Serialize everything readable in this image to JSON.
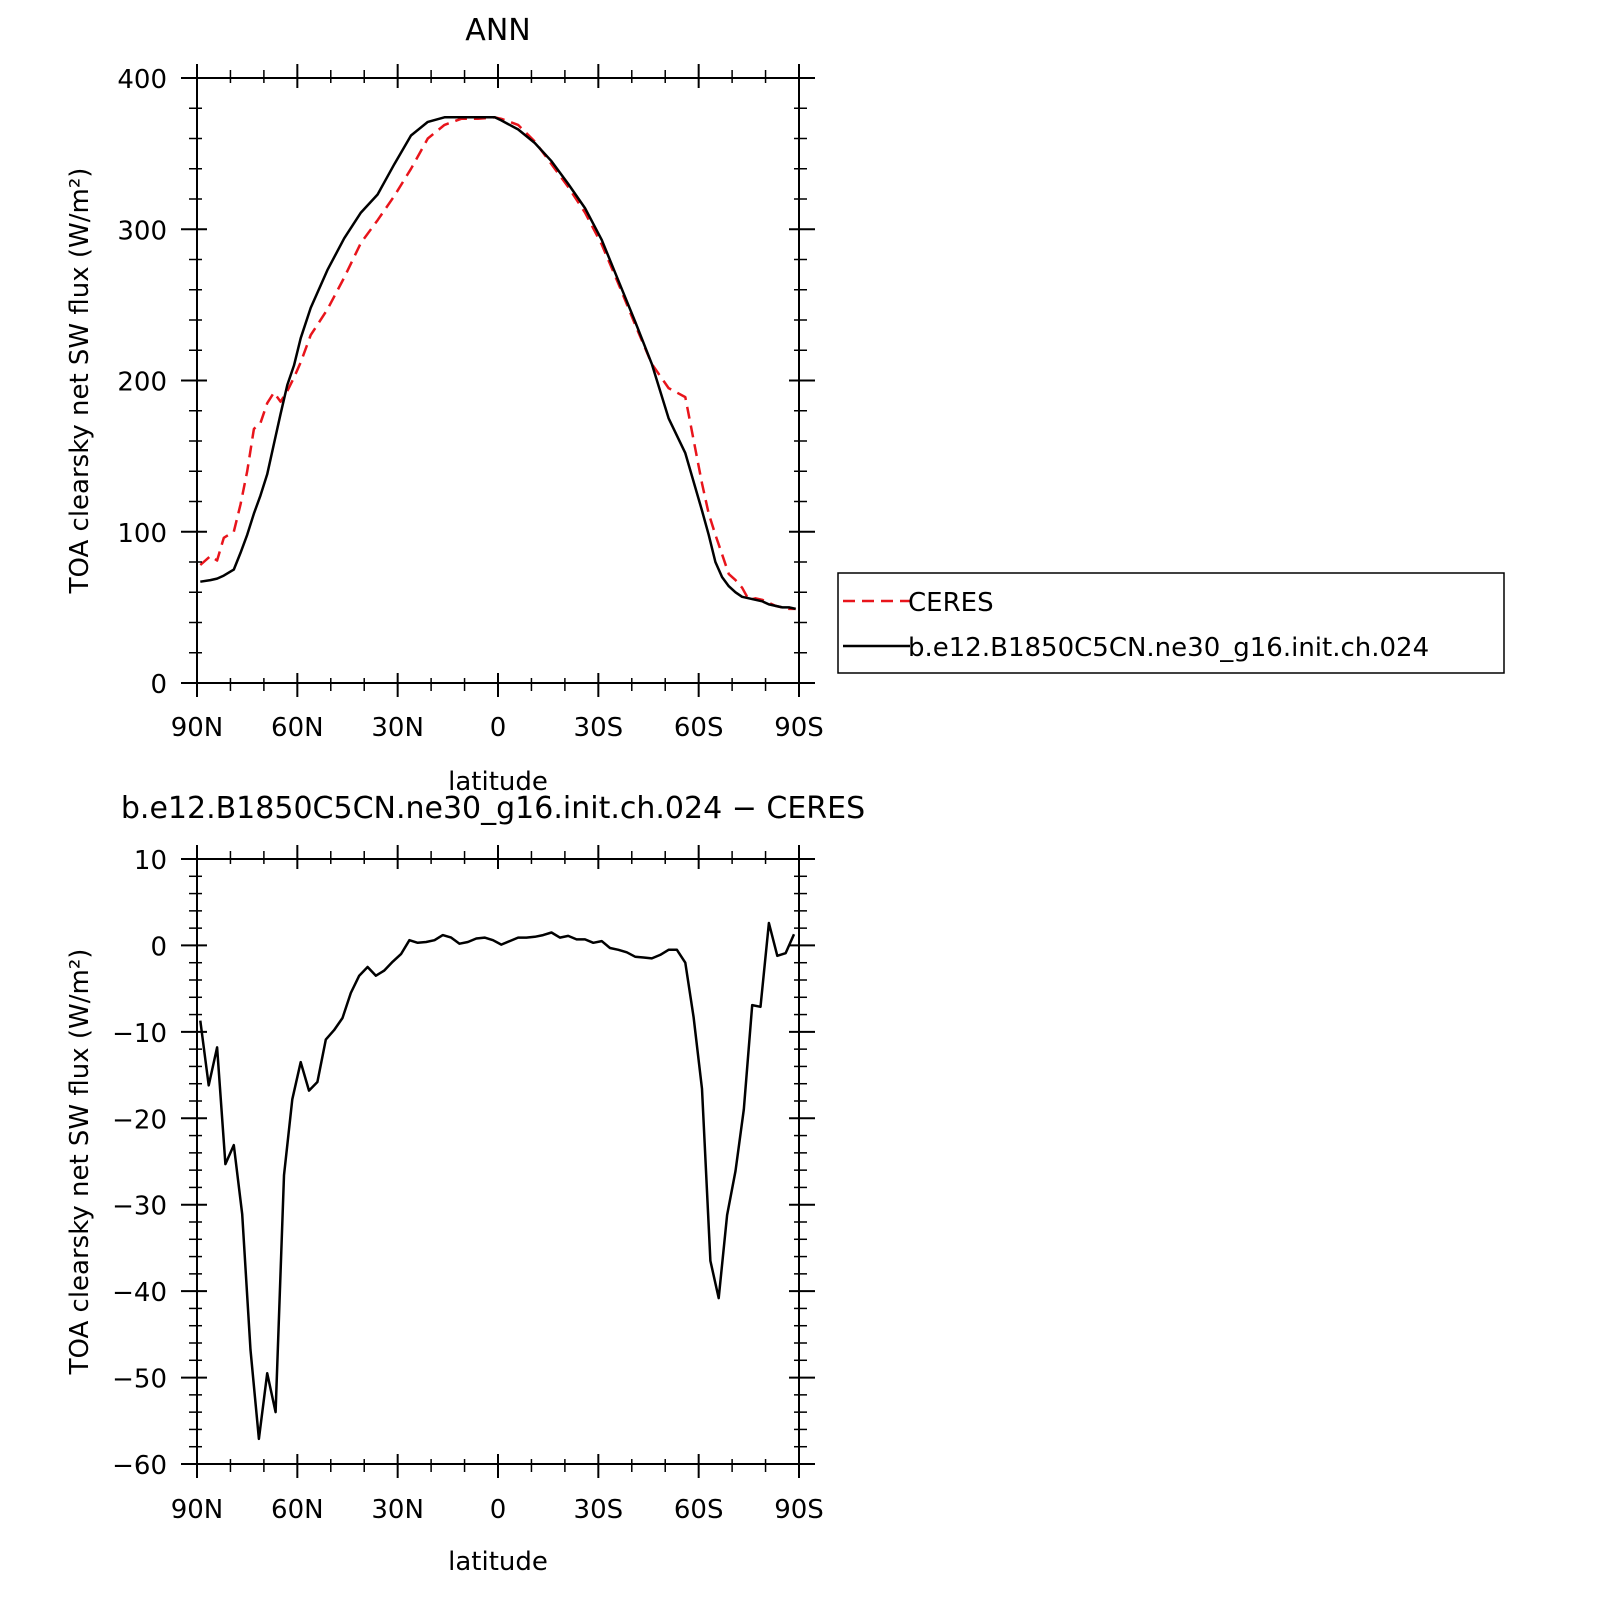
{
  "chart_data": [
    {
      "type": "line",
      "title": "ANN",
      "xlabel": "latitude",
      "ylabel": "TOA clearsky net SW flux (W/m²)",
      "xlim": [
        90,
        -90
      ],
      "ylim": [
        0,
        400
      ],
      "xticks": [
        {
          "value": 90,
          "label": "90N"
        },
        {
          "value": 60,
          "label": "60N"
        },
        {
          "value": 30,
          "label": "30N"
        },
        {
          "value": 0,
          "label": "0"
        },
        {
          "value": -30,
          "label": "30S"
        },
        {
          "value": -60,
          "label": "60S"
        },
        {
          "value": -90,
          "label": "90S"
        }
      ],
      "yticks": [
        0,
        100,
        200,
        300,
        400
      ],
      "grid": false,
      "legend": "right",
      "x": [
        89,
        86,
        84,
        82,
        79,
        77,
        75,
        73,
        71,
        69,
        67,
        65,
        63,
        61,
        59,
        56,
        51,
        46,
        41,
        36,
        31,
        26,
        21,
        16,
        11,
        6,
        1,
        -1,
        -6,
        -11,
        -16,
        -21,
        -26,
        -31,
        -36,
        -41,
        -46,
        -51,
        -56,
        -61,
        -63,
        -65,
        -67,
        -69,
        -71,
        -73,
        -75,
        -77,
        -79,
        -81,
        -83,
        -85,
        -87,
        -89
      ],
      "series": [
        {
          "name": "CERES",
          "color": "#e8141b",
          "dash": "dashed",
          "values": [
            78,
            84,
            81,
            96,
            100,
            118,
            140,
            168,
            172,
            185,
            192,
            186,
            193,
            202,
            212,
            230,
            247,
            268,
            291,
            306,
            322,
            340,
            360,
            369,
            373,
            373,
            374,
            373,
            369,
            358,
            343,
            328,
            311,
            290,
            264,
            237,
            211,
            195,
            189,
            132,
            112,
            98,
            85,
            72,
            68,
            63,
            55,
            56,
            55,
            53,
            51,
            50,
            49,
            49
          ]
        },
        {
          "name": "b.e12.B1850C5CN.ne30_g16.init.ch.024",
          "color": "#000000",
          "dash": "solid",
          "values": [
            67,
            68,
            69,
            71,
            75,
            86,
            98,
            112,
            124,
            138,
            158,
            178,
            197,
            210,
            228,
            248,
            273,
            294,
            311,
            323,
            343,
            362,
            371,
            374,
            374,
            374,
            374,
            372,
            366,
            357,
            345,
            330,
            314,
            293,
            266,
            239,
            211,
            175,
            152,
            114,
            98,
            80,
            70,
            64,
            60,
            57,
            56,
            55,
            54,
            52,
            51,
            50,
            50,
            49
          ]
        }
      ]
    },
    {
      "type": "line",
      "title": "b.e12.B1850C5CN.ne30_g16.init.ch.024 − CERES",
      "xlabel": "latitude",
      "ylabel": "TOA clearsky net SW flux (W/m²)",
      "xlim": [
        90,
        -90
      ],
      "ylim": [
        -60,
        10
      ],
      "xticks": [
        {
          "value": 90,
          "label": "90N"
        },
        {
          "value": 60,
          "label": "60N"
        },
        {
          "value": 30,
          "label": "30N"
        },
        {
          "value": 0,
          "label": "0"
        },
        {
          "value": -30,
          "label": "30S"
        },
        {
          "value": -60,
          "label": "60S"
        },
        {
          "value": -90,
          "label": "90S"
        }
      ],
      "yticks": [
        10,
        0,
        -10,
        -20,
        -30,
        -40,
        -50,
        -60
      ],
      "grid": false,
      "x": [
        89,
        86.5,
        84,
        81.5,
        79,
        76.5,
        74,
        71.5,
        69,
        66.5,
        64,
        61.5,
        59,
        56.5,
        54,
        51.5,
        49,
        46.5,
        44,
        41.5,
        39,
        36.5,
        34,
        31.5,
        29,
        26.5,
        24,
        21.5,
        19,
        16.5,
        14,
        11.5,
        9,
        6.5,
        4,
        1.5,
        -1,
        -3.5,
        -6,
        -8.5,
        -11,
        -13.5,
        -16,
        -18.5,
        -21,
        -23.5,
        -26,
        -28.5,
        -31,
        -33.5,
        -36,
        -38.5,
        -41,
        -43.5,
        -46,
        -48.5,
        -51,
        -53.5,
        -56,
        -58.5,
        -61,
        -63.5,
        -66,
        -68.5,
        -71,
        -73.5,
        -76,
        -78.5,
        -81,
        -83.5,
        -86,
        -88.5
      ],
      "series": [
        {
          "name": "",
          "color": "#000000",
          "dash": "solid",
          "values": [
            -8.7,
            -16.2,
            -11.8,
            -25.3,
            -23.1,
            -31.1,
            -46.8,
            -57.1,
            -49.5,
            -54.0,
            -26.6,
            -17.8,
            -13.5,
            -16.8,
            -15.8,
            -10.9,
            -9.8,
            -8.4,
            -5.5,
            -3.5,
            -2.5,
            -3.5,
            -2.9,
            -1.9,
            -1.0,
            0.6,
            0.3,
            0.4,
            0.6,
            1.2,
            0.9,
            0.2,
            0.4,
            0.8,
            0.9,
            0.6,
            0.1,
            0.5,
            0.9,
            0.9,
            1.0,
            1.2,
            1.5,
            0.9,
            1.1,
            0.7,
            0.7,
            0.3,
            0.5,
            -0.3,
            -0.5,
            -0.8,
            -1.3,
            -1.4,
            -1.5,
            -1.1,
            -0.5,
            -0.5,
            -2.0,
            -8.3,
            -16.6,
            -36.5,
            -40.8,
            -31.2,
            -26.1,
            -19.0,
            -6.9,
            -7.1,
            2.6,
            -1.2,
            -0.9,
            1.3
          ]
        }
      ]
    }
  ]
}
